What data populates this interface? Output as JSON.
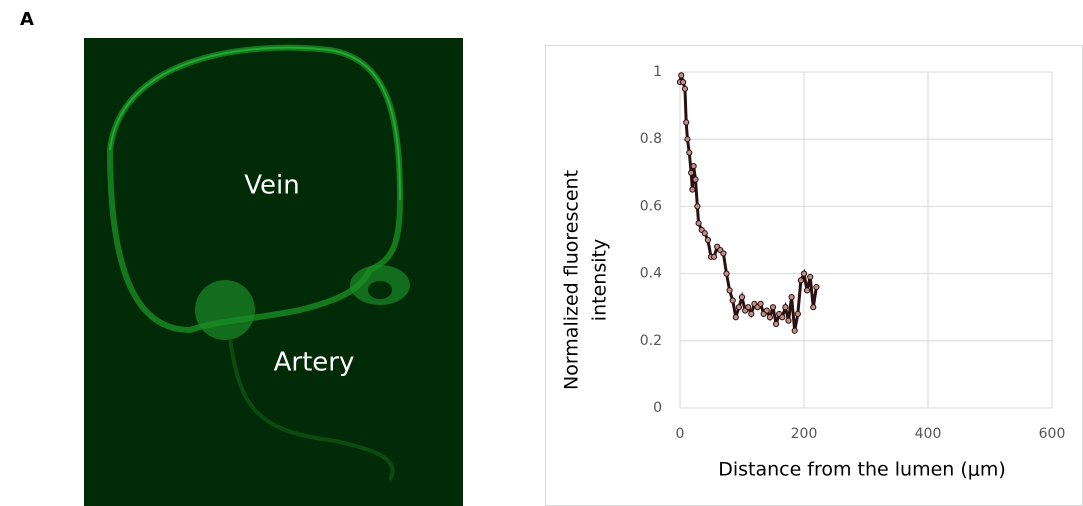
{
  "panel_label": "A",
  "image": {
    "labels": [
      "Vein",
      "Artery"
    ]
  },
  "chart_data": {
    "type": "line",
    "xlabel": "Distance from the lumen (μm)",
    "ylabel": [
      "Normalized fluorescent",
      "intensity"
    ],
    "x": [
      0,
      2,
      5,
      8,
      10,
      12,
      15,
      18,
      20,
      22,
      25,
      28,
      30,
      35,
      40,
      45,
      50,
      55,
      60,
      65,
      70,
      75,
      80,
      85,
      90,
      95,
      100,
      105,
      110,
      115,
      120,
      125,
      130,
      135,
      140,
      145,
      150,
      155,
      160,
      165,
      170,
      175,
      180,
      185,
      190,
      195,
      200,
      205,
      210,
      215,
      220
    ],
    "series": [
      {
        "color": "#2a1010",
        "marker_color": "#c0908a",
        "values": [
          0.97,
          0.99,
          0.97,
          0.95,
          0.85,
          0.8,
          0.76,
          0.7,
          0.65,
          0.72,
          0.68,
          0.6,
          0.55,
          0.53,
          0.52,
          0.5,
          0.45,
          0.45,
          0.48,
          0.47,
          0.46,
          0.4,
          0.35,
          0.32,
          0.27,
          0.3,
          0.33,
          0.29,
          0.3,
          0.28,
          0.31,
          0.3,
          0.31,
          0.28,
          0.29,
          0.27,
          0.3,
          0.25,
          0.28,
          0.27,
          0.3,
          0.26,
          0.33,
          0.23,
          0.28,
          0.38,
          0.4,
          0.35,
          0.39,
          0.3,
          0.36
        ]
      }
    ],
    "xlim": [
      0,
      600
    ],
    "xticks": [
      0,
      200,
      400,
      600
    ],
    "ylim": [
      0,
      1
    ],
    "yticks": [
      0,
      0.2,
      0.4,
      0.6,
      0.8,
      1
    ],
    "grid": true
  }
}
